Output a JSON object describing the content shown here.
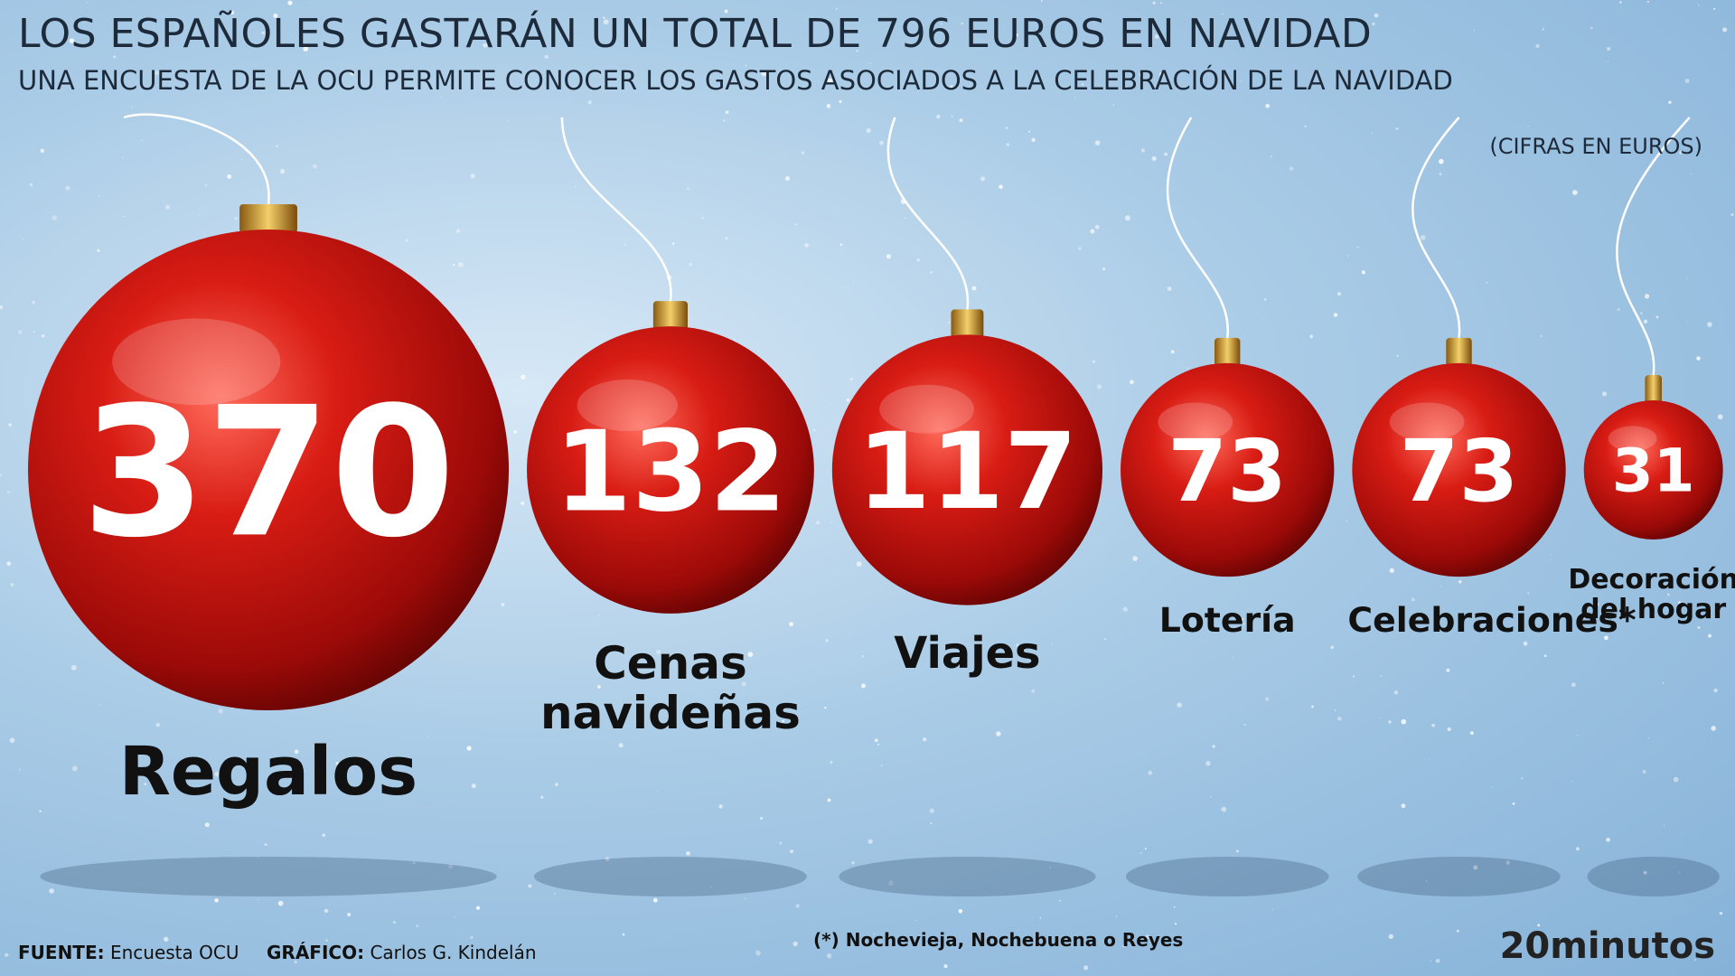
{
  "chart_data": {
    "type": "bubble",
    "title": "LOS ESPAÑOLES GASTARÁN UN TOTAL DE 796 EUROS EN NAVIDAD",
    "subtitle": "UNA ENCUESTA DE LA OCU PERMITE CONOCER LOS GASTOS ASOCIADOS A LA CELEBRACIÓN DE LA NAVIDAD",
    "unit_note": "(CIFRAS EN EUROS)",
    "categories": [
      "Regalos",
      "Cenas navideñas",
      "Viajes",
      "Lotería",
      "Celebraciones*",
      "Decoración del hogar"
    ],
    "values": [
      370,
      132,
      117,
      73,
      73,
      31
    ],
    "color": "#c8140f",
    "footnote": "(*) Nochevieja, Nochebuena o Reyes",
    "source_label": "FUENTE:",
    "source": "Encuesta OCU",
    "credit_label": "GRÁFICO:",
    "credit": "Carlos G. Kindelán",
    "brand": "20minutos"
  }
}
